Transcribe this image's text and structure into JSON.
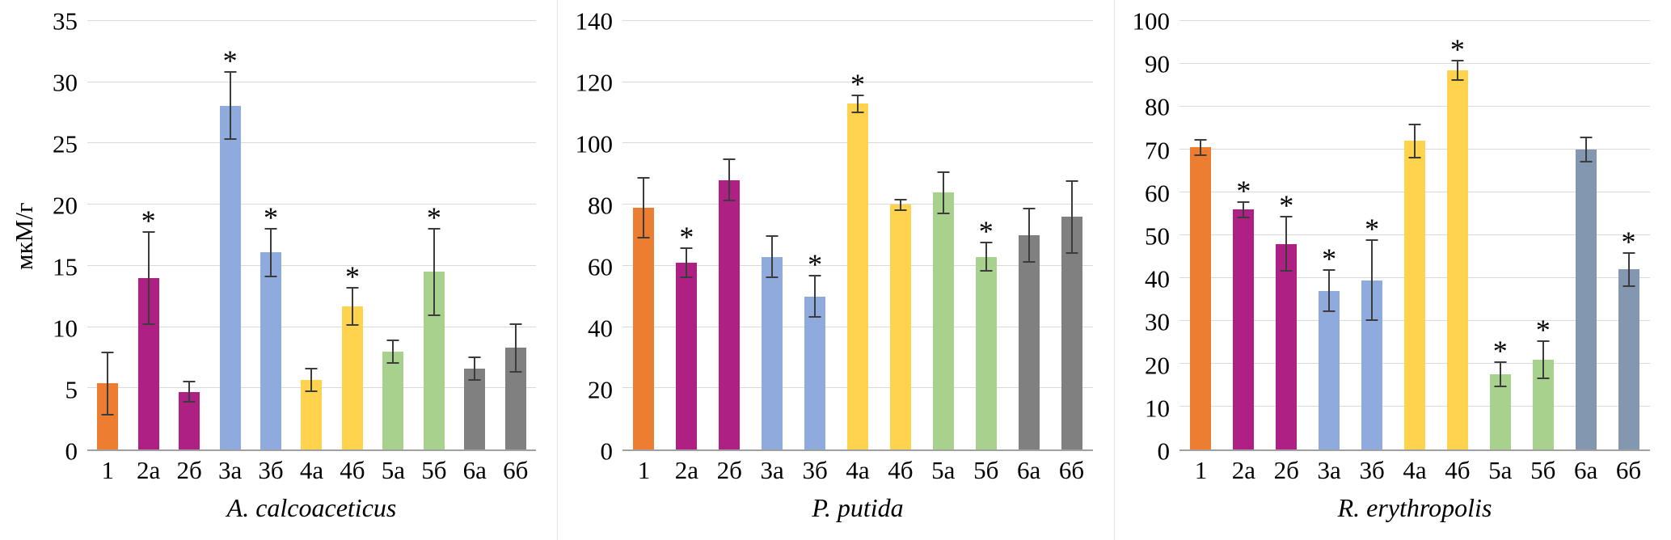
{
  "significance_marker": "*",
  "chart_data": [
    {
      "type": "bar",
      "title": "A. calcoaceticus",
      "ylabel": "мкМ/г",
      "ylim": [
        0,
        35
      ],
      "ytick_step": 5,
      "grid": true,
      "legend": false,
      "categories": [
        "1",
        "2а",
        "2б",
        "3а",
        "3б",
        "4а",
        "4б",
        "5а",
        "5б",
        "6а",
        "6б"
      ],
      "values": [
        5.4,
        14.0,
        4.7,
        28.1,
        16.1,
        5.7,
        11.7,
        8.0,
        14.5,
        6.6,
        8.3
      ],
      "errors": [
        2.6,
        3.8,
        0.9,
        2.8,
        2.0,
        1.0,
        1.6,
        1.0,
        3.6,
        1.0,
        2.0
      ],
      "significant": [
        false,
        true,
        false,
        true,
        true,
        false,
        true,
        false,
        true,
        false,
        false
      ],
      "colors": [
        "#ED7D31",
        "#AF2085",
        "#AF2085",
        "#8FAADC",
        "#8FAADC",
        "#FFD34D",
        "#FFD34D",
        "#A9D18E",
        "#A9D18E",
        "#808080",
        "#808080"
      ]
    },
    {
      "type": "bar",
      "title": "P. putida",
      "ylabel": "",
      "ylim": [
        0,
        140
      ],
      "ytick_step": 20,
      "grid": true,
      "legend": false,
      "categories": [
        "1",
        "2а",
        "2б",
        "3а",
        "3б",
        "4а",
        "4б",
        "5а",
        "5б",
        "6а",
        "6б"
      ],
      "values": [
        79,
        61,
        88,
        63,
        50,
        113,
        80,
        84,
        63,
        70,
        76
      ],
      "errors": [
        10,
        5,
        7,
        7,
        7,
        3,
        2,
        7,
        5,
        9,
        12
      ],
      "significant": [
        false,
        true,
        false,
        false,
        true,
        true,
        false,
        false,
        true,
        false,
        false
      ],
      "colors": [
        "#ED7D31",
        "#AF2085",
        "#AF2085",
        "#8FAADC",
        "#8FAADC",
        "#FFD34D",
        "#FFD34D",
        "#A9D18E",
        "#A9D18E",
        "#808080",
        "#808080"
      ]
    },
    {
      "type": "bar",
      "title": "R. erythropolis",
      "ylabel": "",
      "ylim": [
        0,
        100
      ],
      "ytick_step": 10,
      "grid": true,
      "legend": false,
      "categories": [
        "1",
        "2а",
        "2б",
        "3а",
        "3б",
        "4а",
        "4б",
        "5а",
        "5б",
        "6а",
        "6б"
      ],
      "values": [
        70.5,
        56,
        48,
        37,
        39.5,
        72,
        88.5,
        17.5,
        21,
        70,
        42
      ],
      "errors": [
        2,
        2,
        6.5,
        5,
        9.5,
        4,
        2.5,
        3,
        4.5,
        3,
        4
      ],
      "significant": [
        false,
        true,
        true,
        true,
        true,
        false,
        true,
        true,
        true,
        false,
        true
      ],
      "colors": [
        "#ED7D31",
        "#AF2085",
        "#AF2085",
        "#8FAADC",
        "#8FAADC",
        "#FFD34D",
        "#FFD34D",
        "#A9D18E",
        "#A9D18E",
        "#8497B0",
        "#8497B0"
      ]
    }
  ]
}
